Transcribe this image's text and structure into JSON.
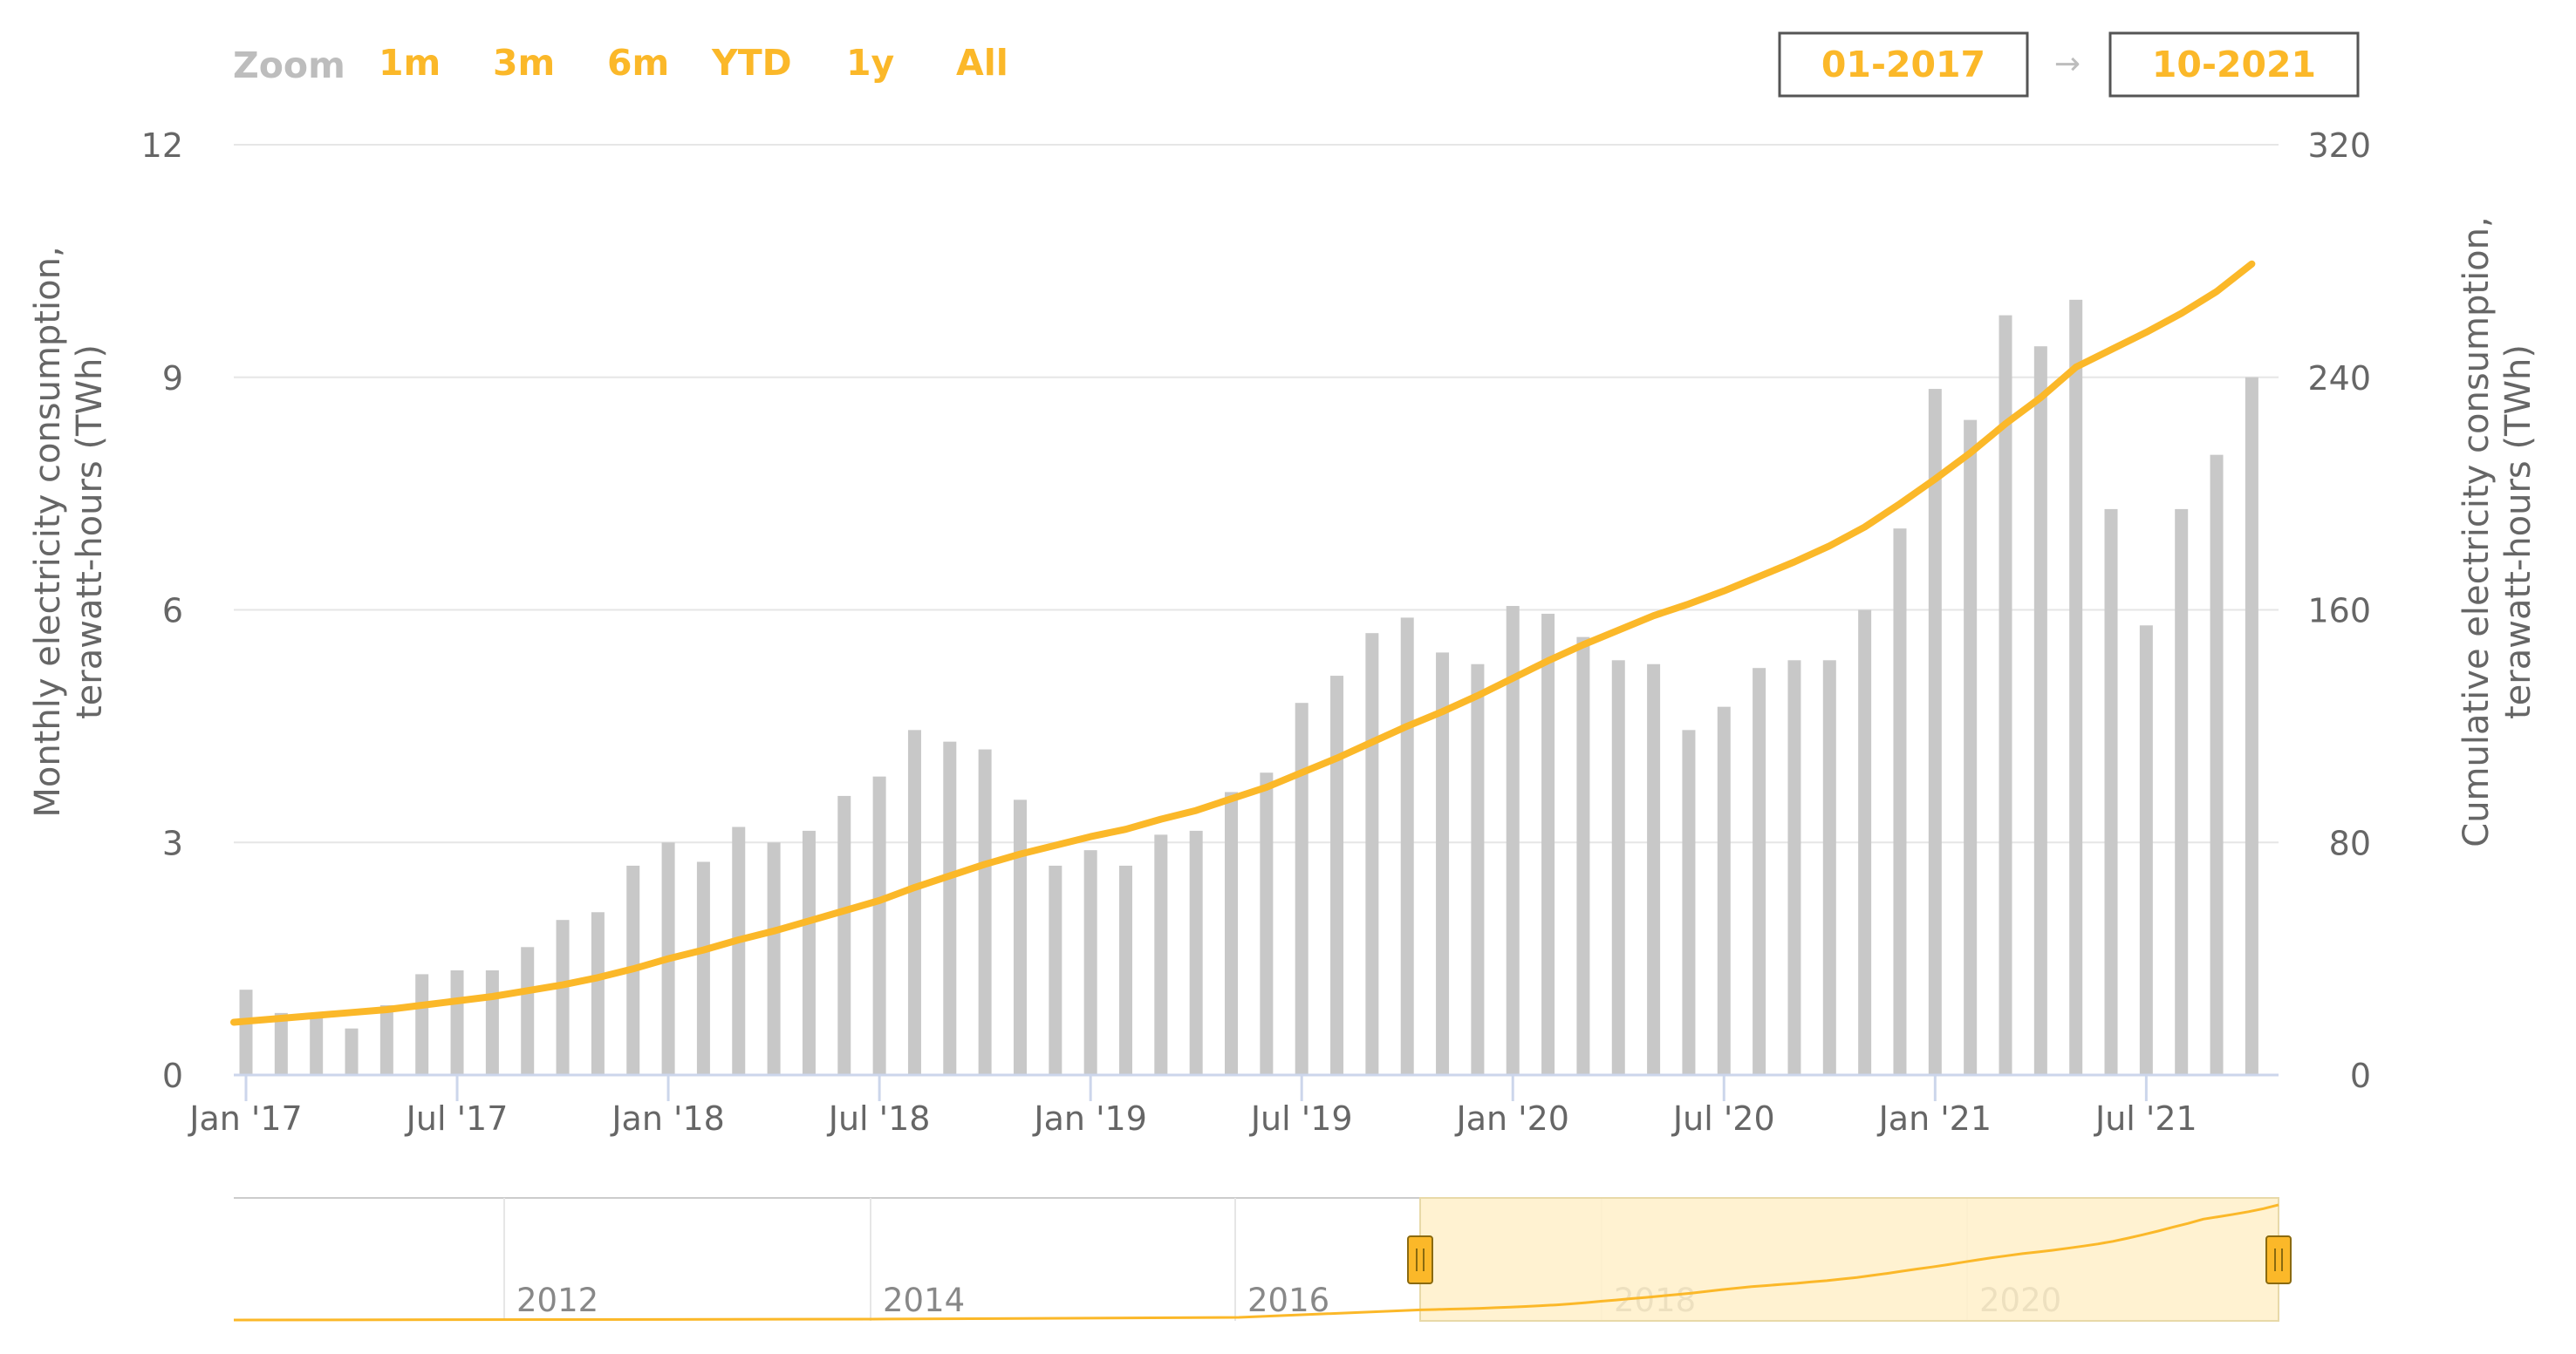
{
  "range_selector": {
    "zoom_label": "Zoom",
    "buttons": [
      "1m",
      "3m",
      "6m",
      "YTD",
      "1y",
      "All"
    ],
    "from": "01-2017",
    "arrow": "→",
    "to": "10-2021"
  },
  "colors": {
    "accent": "#FBB829",
    "bars": "#C8C8C8",
    "grid": "#E6E6E6",
    "axis_text": "#666666",
    "zoom_label": "#BDBDBD",
    "navigator_fill": "#FFF0C9"
  },
  "chart_data": {
    "type": "bar+line",
    "xlabel": "",
    "ylabel_left": [
      "Monthly electricity consumption,",
      "terawatt-hours (TWh)"
    ],
    "ylabel_right": [
      "Cumulative electricity consumption,",
      "terawatt-hours (TWh)"
    ],
    "ylim_left": [
      0,
      12
    ],
    "yticks_left": [
      "0",
      "3",
      "6",
      "9",
      "12"
    ],
    "ylim_right": [
      0,
      320
    ],
    "yticks_right": [
      "0",
      "80",
      "160",
      "240",
      "320"
    ],
    "xticks": [
      "Jan '17",
      "Jul '17",
      "Jan '18",
      "Jul '18",
      "Jan '19",
      "Jul '19",
      "Jan '20",
      "Jul '20",
      "Jan '21",
      "Jul '21"
    ],
    "x_start": "2017-01",
    "x_end": "2021-10",
    "grid": true,
    "series": [
      {
        "type": "bar",
        "axis": "left",
        "values": [
          1.1,
          0.8,
          0.8,
          0.6,
          0.9,
          1.3,
          1.35,
          1.35,
          1.65,
          2.0,
          2.1,
          2.7,
          3.0,
          2.75,
          3.2,
          3.0,
          3.15,
          3.6,
          3.85,
          4.45,
          4.3,
          4.2,
          3.55,
          2.7,
          2.9,
          2.7,
          3.1,
          3.15,
          3.65,
          3.9,
          4.8,
          5.15,
          5.7,
          5.9,
          5.45,
          5.3,
          6.05,
          5.95,
          5.65,
          5.35,
          5.3,
          4.45,
          4.75,
          5.25,
          5.35,
          5.35,
          6.0,
          7.05,
          8.85,
          8.45,
          9.8,
          9.4,
          10.0,
          7.3,
          5.8,
          7.3,
          8.0,
          9.0
        ]
      },
      {
        "type": "line",
        "axis": "right",
        "values": [
          18.5,
          19.5,
          20.5,
          21.5,
          22.5,
          24,
          25.5,
          27,
          29,
          31,
          33.5,
          36.5,
          40,
          43,
          46.5,
          49.5,
          53,
          56.5,
          60,
          64.5,
          68.5,
          72.5,
          76,
          79,
          82,
          84.5,
          88,
          91,
          95,
          99,
          104,
          109,
          114.5,
          120,
          125,
          130.5,
          136.5,
          142.5,
          148,
          153,
          158,
          162,
          166.5,
          171.5,
          176.5,
          182,
          188.5,
          196.5,
          205,
          214,
          224,
          233,
          243.5,
          249.5,
          255.5,
          262,
          269.5,
          279
        ]
      }
    ]
  },
  "navigator": {
    "labels": [
      "2012",
      "2014",
      "2016",
      "2018",
      "2020"
    ]
  }
}
